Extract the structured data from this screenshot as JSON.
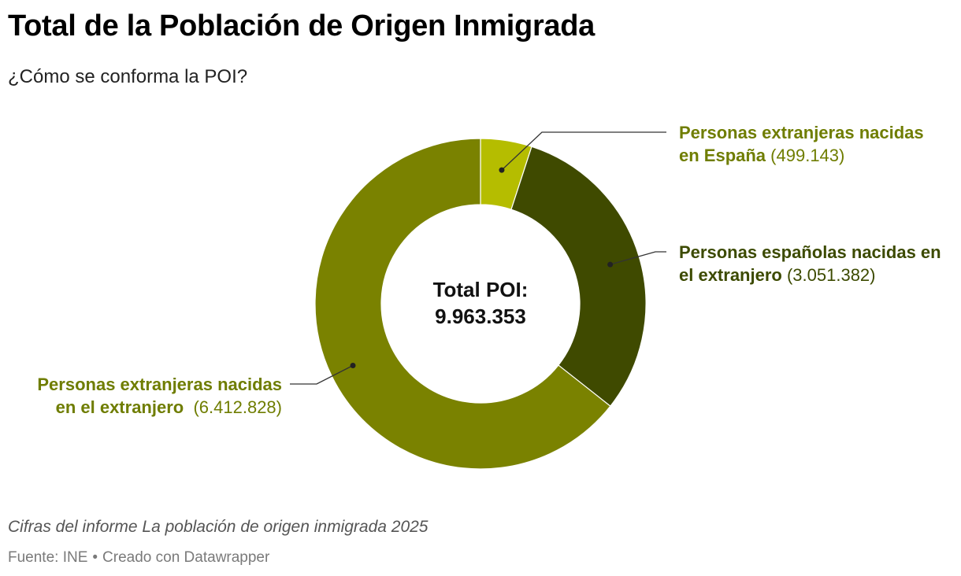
{
  "header": {
    "title": "Total de la Población de Origen Inmigrada",
    "subtitle": "¿Cómo se conforma la POI?"
  },
  "center": {
    "line1": "Total POI:",
    "line2": "9.963.353"
  },
  "labels": [
    {
      "line1": "Personas extranjeras nacidas",
      "line2": "en España",
      "value": "(499.143)"
    },
    {
      "line1": "Personas españolas nacidas en",
      "line2": "el extranjero",
      "value": "(3.051.382)"
    },
    {
      "line1": "Personas extranjeras nacidas",
      "line2": "en el extranjero",
      "value": "(6.412.828)"
    }
  ],
  "footer": {
    "note": "Cifras del informe La población de origen inmigrada 2025",
    "source": "Fuente: INE",
    "separator": "•",
    "credit": "Creado con Datawrapper"
  },
  "chart_data": {
    "type": "pie",
    "variant": "donut",
    "total": 9963353,
    "slices": [
      {
        "label": "Personas extranjeras nacidas en España",
        "value": 499143,
        "color": "#b5bd00"
      },
      {
        "label": "Personas españolas nacidas en el extranjero",
        "value": 3051382,
        "color": "#3f4a00"
      },
      {
        "label": "Personas extranjeras nacidas en el extranjero",
        "value": 6412828,
        "color": "#7a8200"
      }
    ]
  }
}
